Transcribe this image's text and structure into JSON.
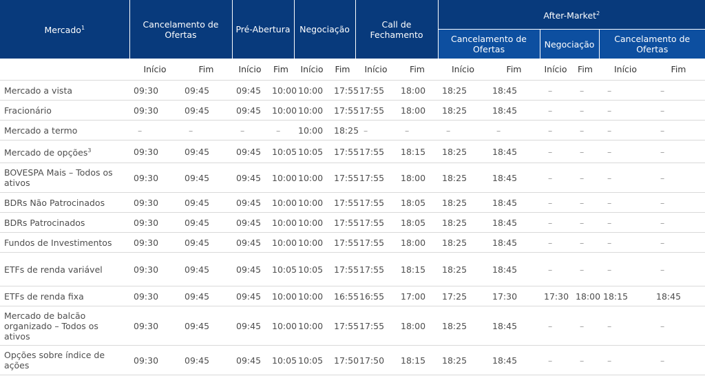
{
  "header": {
    "mercado": "Mercado",
    "mercado_sup": "1",
    "cancelamento": "Cancelamento de Ofertas",
    "pre_abertura": "Pré-Abertura",
    "negociacao": "Negociação",
    "call": "Call de Fechamento",
    "after_market": "After-Market",
    "after_market_sup": "2",
    "after_cancelamento": "Cancelamento de Ofertas",
    "after_negociacao": "Negociação",
    "after_cancelamento2": "Cancelamento de Ofertas"
  },
  "subheader": [
    "Início",
    "Fim",
    "Início",
    "Fim",
    "Início",
    "Fim",
    "Início",
    "Fim",
    "Início",
    "Fim",
    "Início",
    "Fim",
    "Início",
    "Fim"
  ],
  "rows": [
    {
      "mercado": "Mercado a vista",
      "sup": "",
      "h": 29,
      "values": [
        "09:30",
        "09:45",
        "09:45",
        "10:00",
        "10:00",
        "17:55",
        "17:55",
        "18:00",
        "18:25",
        "18:45",
        "–",
        "–",
        "–",
        "–"
      ]
    },
    {
      "mercado": "Fracionário",
      "sup": "",
      "h": 29,
      "values": [
        "09:30",
        "09:45",
        "09:45",
        "10:00",
        "10:00",
        "17:55",
        "17:55",
        "18:00",
        "18:25",
        "18:45",
        "–",
        "–",
        "–",
        "–"
      ]
    },
    {
      "mercado": "Mercado a termo",
      "sup": "",
      "h": 29,
      "values": [
        "–",
        "–",
        "–",
        "–",
        "10:00",
        "18:25",
        "–",
        "–",
        "–",
        "–",
        "–",
        "–",
        "–",
        "–"
      ]
    },
    {
      "mercado": "Mercado de opções",
      "sup": "3",
      "h": 33,
      "values": [
        "09:30",
        "09:45",
        "09:45",
        "10:05",
        "10:05",
        "17:55",
        "17:55",
        "18:15",
        "18:25",
        "18:45",
        "–",
        "–",
        "–",
        "–"
      ]
    },
    {
      "mercado": "BOVESPA Mais – Todos os ativos",
      "sup": "",
      "h": 43,
      "values": [
        "09:30",
        "09:45",
        "09:45",
        "10:00",
        "10:00",
        "17:55",
        "17:55",
        "18:00",
        "18:25",
        "18:45",
        "–",
        "–",
        "–",
        "–"
      ]
    },
    {
      "mercado": "BDRs Não Patrocinados",
      "sup": "",
      "h": 29,
      "values": [
        "09:30",
        "09:45",
        "09:45",
        "10:00",
        "10:00",
        "17:55",
        "17:55",
        "18:05",
        "18:25",
        "18:45",
        "–",
        "–",
        "–",
        "–"
      ]
    },
    {
      "mercado": "BDRs Patrocinados",
      "sup": "",
      "h": 29,
      "values": [
        "09:30",
        "09:45",
        "09:45",
        "10:00",
        "10:00",
        "17:55",
        "17:55",
        "18:05",
        "18:25",
        "18:45",
        "–",
        "–",
        "–",
        "–"
      ]
    },
    {
      "mercado": "Fundos de Investimentos",
      "sup": "",
      "h": 29,
      "values": [
        "09:30",
        "09:45",
        "09:45",
        "10:00",
        "10:00",
        "17:55",
        "17:55",
        "18:00",
        "18:25",
        "18:45",
        "–",
        "–",
        "–",
        "–"
      ]
    },
    {
      "mercado": "ETFs de renda variável",
      "sup": "",
      "h": 49,
      "values": [
        "09:30",
        "09:45",
        "09:45",
        "10:05",
        "10:05",
        "17:55",
        "17:55",
        "18:15",
        "18:25",
        "18:45",
        "–",
        "–",
        "–",
        "–"
      ]
    },
    {
      "mercado": "ETFs de renda fixa",
      "sup": "",
      "h": 29,
      "values": [
        "09:30",
        "09:45",
        "09:45",
        "10:00",
        "10:00",
        "16:55",
        "16:55",
        "17:00",
        "17:25",
        "17:30",
        "17:30",
        "18:00",
        "18:15",
        "18:45"
      ]
    },
    {
      "mercado": "Mercado de balcão organizado – Todos os ativos",
      "sup": "",
      "h": 57,
      "values": [
        "09:30",
        "09:45",
        "09:45",
        "10:00",
        "10:00",
        "17:55",
        "17:55",
        "18:00",
        "18:25",
        "18:45",
        "–",
        "–",
        "–",
        "–"
      ]
    },
    {
      "mercado": "Opções sobre índice de ações",
      "sup": "",
      "h": 43,
      "values": [
        "09:30",
        "09:45",
        "09:45",
        "10:05",
        "10:05",
        "17:50",
        "17:50",
        "18:15",
        "18:25",
        "18:45",
        "–",
        "–",
        "–",
        "–"
      ]
    }
  ]
}
